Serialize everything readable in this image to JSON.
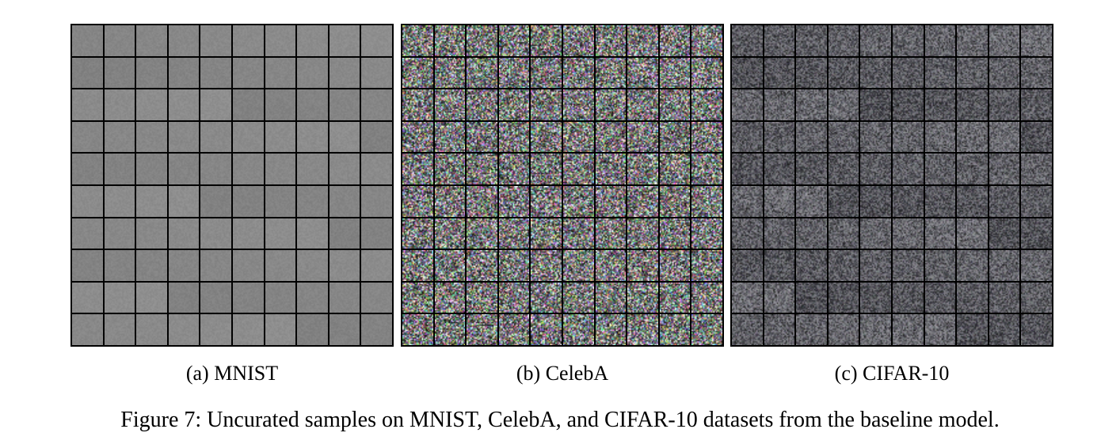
{
  "panels": [
    {
      "id": "a",
      "caption": "(a) MNIST",
      "style": "grayscale-flat",
      "rows": 10,
      "cols": 10
    },
    {
      "id": "b",
      "caption": "(b) CelebA",
      "style": "color-noise",
      "rows": 10,
      "cols": 10
    },
    {
      "id": "c",
      "caption": "(c) CIFAR-10",
      "style": "muted-noise",
      "rows": 10,
      "cols": 10
    }
  ],
  "figure_caption": "Figure 7: Uncurated samples on MNIST, CelebA, and CIFAR-10 datasets from the baseline model.",
  "colors": {
    "grid_border": "#000000",
    "mnist_tile": "#8a8a8a"
  }
}
